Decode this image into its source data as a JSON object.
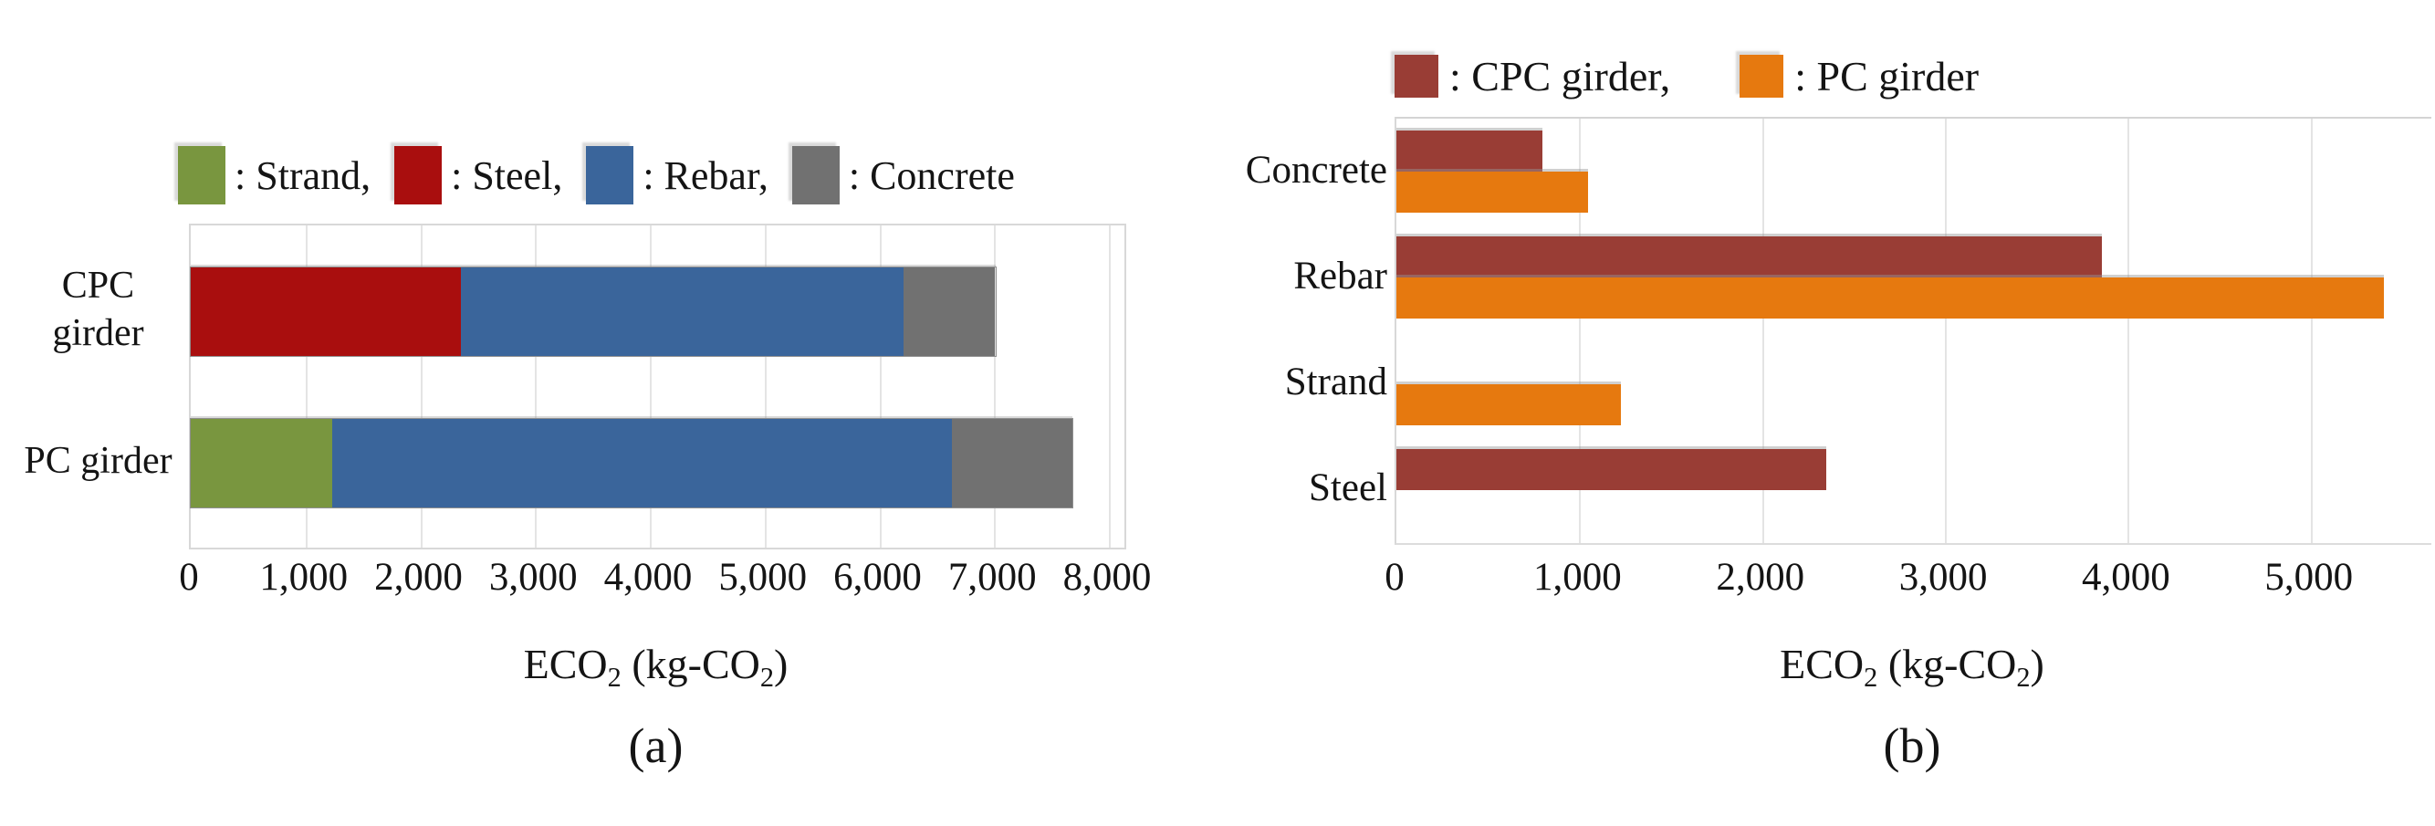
{
  "figure": {
    "background": "#FFFFFF"
  },
  "chart_data": [
    {
      "type": "bar",
      "orientation": "horizontal",
      "mode": "stacked",
      "categories": [
        "CPC girder",
        "PC girder"
      ],
      "series": [
        {
          "name": "Strand",
          "color": "#79963F",
          "values": [
            0,
            1230
          ]
        },
        {
          "name": "Steel",
          "color": "#A90E0E",
          "values": [
            2350,
            0
          ]
        },
        {
          "name": "Rebar",
          "color": "#3A659B",
          "values": [
            3860,
            5400
          ]
        },
        {
          "name": "Concrete",
          "color": "#717171",
          "values": [
            800,
            1050
          ]
        }
      ],
      "legend_labels": [
        ": Strand,",
        ": Steel,",
        ": Rebar,",
        ": Concrete"
      ],
      "legend_position": "top",
      "xlabel": "ECO2 (kg-CO2)",
      "xlabel_parts": [
        [
          "ECO",
          0
        ],
        [
          "2",
          1
        ],
        [
          " (kg-CO",
          0
        ],
        [
          "2",
          1
        ],
        [
          ")",
          0
        ]
      ],
      "xlim": [
        0,
        8135
      ],
      "xticks": [
        "0",
        "1,000",
        "2,000",
        "3,000",
        "4,000",
        "5,000",
        "6,000",
        "7,000",
        "8,000"
      ],
      "tick_step": 1000,
      "grid": true,
      "caption": "(a)"
    },
    {
      "type": "bar",
      "orientation": "horizontal",
      "mode": "grouped",
      "categories": [
        "Concrete",
        "Rebar",
        "Strand",
        "Steel"
      ],
      "series": [
        {
          "name": "CPC girder",
          "color": "#993D35",
          "values": [
            800,
            3860,
            null,
            2350
          ]
        },
        {
          "name": "PC girder",
          "color": "#E6790F",
          "values": [
            1050,
            5400,
            1230,
            null
          ]
        }
      ],
      "legend_labels": [
        ": CPC girder,",
        ": PC girder"
      ],
      "legend_position": "top",
      "xlabel": "ECO2 (kg-CO2)",
      "xlabel_parts": [
        [
          "ECO",
          0
        ],
        [
          "2",
          1
        ],
        [
          " (kg-CO",
          0
        ],
        [
          "2",
          1
        ],
        [
          ")",
          0
        ]
      ],
      "xlim": [
        0,
        5660
      ],
      "xticks": [
        "0",
        "1,000",
        "2,000",
        "3,000",
        "4,000",
        "5,000"
      ],
      "tick_step": 1000,
      "grid": true,
      "caption": "(b)"
    }
  ]
}
